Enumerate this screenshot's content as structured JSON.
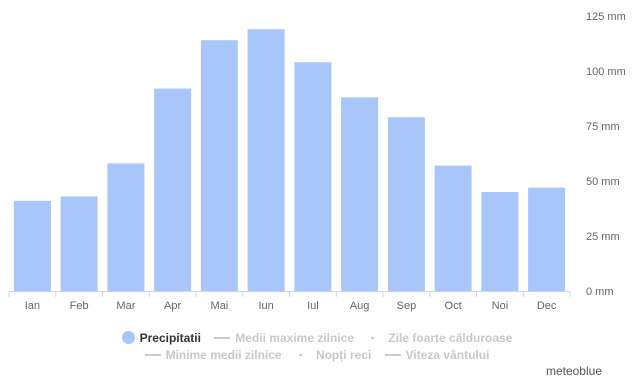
{
  "chart_data": {
    "type": "bar",
    "categories": [
      "Ian",
      "Feb",
      "Mar",
      "Apr",
      "Mai",
      "Iun",
      "Iul",
      "Aug",
      "Sep",
      "Oct",
      "Noi",
      "Dec"
    ],
    "series": [
      {
        "name": "Precipitatii",
        "values": [
          41,
          43,
          58,
          92,
          114,
          119,
          104,
          88,
          79,
          57,
          45,
          47
        ],
        "color": "#a9c6fb"
      }
    ],
    "y_axis": {
      "position": "right",
      "ticks": [
        0,
        25,
        50,
        75,
        100,
        125
      ],
      "tick_labels": [
        "0 mm",
        "25 mm",
        "50 mm",
        "75 mm",
        "100 mm",
        "125 mm"
      ],
      "ylim": [
        0,
        125
      ]
    },
    "grid": false,
    "legend": {
      "placement": "bottom",
      "items": [
        {
          "label": "Precipitatii",
          "symbol": "dot",
          "active": true
        },
        {
          "label": "Medii maxime zilnice",
          "symbol": "line",
          "active": false
        },
        {
          "label": "Zile foarte călduroase",
          "symbol": "dash",
          "active": false
        },
        {
          "label": "Minime medii zilnice",
          "symbol": "line",
          "active": false
        },
        {
          "label": "Nopți reci",
          "symbol": "dash",
          "active": false
        },
        {
          "label": "Viteza vântului",
          "symbol": "line",
          "active": false
        }
      ]
    }
  },
  "credit": "meteoblue"
}
